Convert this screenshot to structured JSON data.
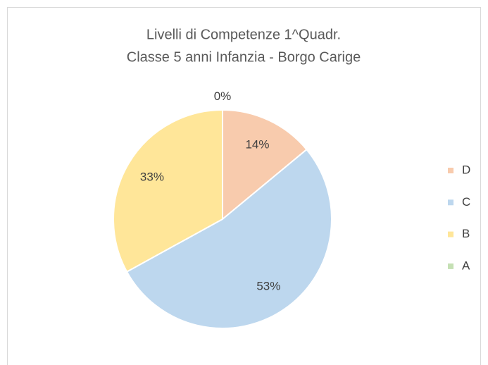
{
  "chart_data": {
    "type": "pie",
    "title": "Livelli di Competenze 1^Quadr.",
    "subtitle": "Classe 5 anni Infanzia - Borgo Carige",
    "categories": [
      "D",
      "C",
      "B",
      "A"
    ],
    "values": [
      14,
      53,
      33,
      0
    ],
    "value_labels": [
      "14%",
      "53%",
      "33%",
      "0%"
    ],
    "colors": [
      "#f8cbad",
      "#bdd7ee",
      "#ffe699",
      "#c5e0b4"
    ],
    "legend": "right"
  }
}
